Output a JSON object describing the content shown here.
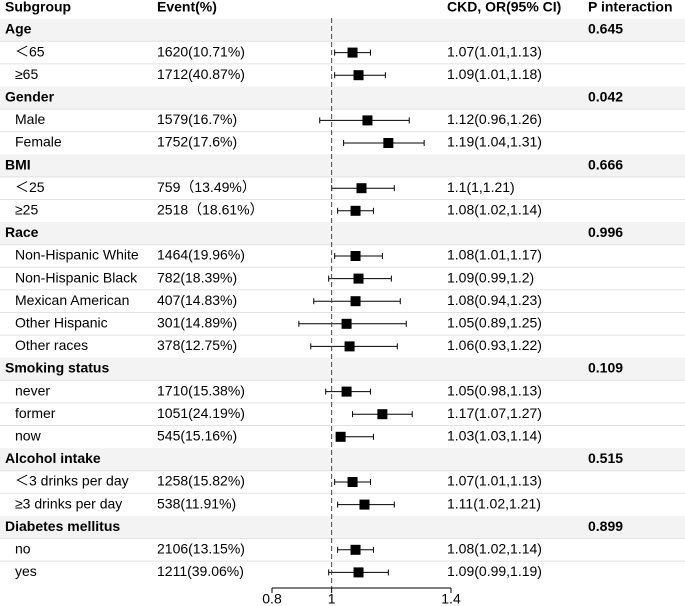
{
  "chart_data": {
    "type": "forest",
    "columns": [
      "Subgroup",
      "Event(%)",
      "CKD, OR(95% CI)",
      "P interaction"
    ],
    "xlim": [
      0.8,
      1.4
    ],
    "xticks": [
      0.8,
      1,
      1.4
    ],
    "reference": 1,
    "groups": [
      {
        "name": "Age",
        "p_interaction": 0.645,
        "rows": [
          {
            "label": "＜65",
            "event": "1620(10.71%)",
            "ci_label": "1.07(1.01,1.13)",
            "or": 1.07,
            "lower": 1.01,
            "upper": 1.13
          },
          {
            "label": "≥65",
            "event": "1712(40.87%)",
            "ci_label": "1.09(1.01,1.18)",
            "or": 1.09,
            "lower": 1.01,
            "upper": 1.18
          }
        ]
      },
      {
        "name": "Gender",
        "p_interaction": 0.042,
        "rows": [
          {
            "label": "Male",
            "event": "1579(16.7%)",
            "ci_label": "1.12(0.96,1.26)",
            "or": 1.12,
            "lower": 0.96,
            "upper": 1.26
          },
          {
            "label": "Female",
            "event": "1752(17.6%)",
            "ci_label": "1.19(1.04,1.31)",
            "or": 1.19,
            "lower": 1.04,
            "upper": 1.31
          }
        ]
      },
      {
        "name": "BMI",
        "p_interaction": 0.666,
        "rows": [
          {
            "label": "＜25",
            "event": "759（13.49%）",
            "ci_label": "1.1(1,1.21)",
            "or": 1.1,
            "lower": 1,
            "upper": 1.21
          },
          {
            "label": "≥25",
            "event": "2518（18.61%）",
            "ci_label": "1.08(1.02,1.14)",
            "or": 1.08,
            "lower": 1.02,
            "upper": 1.14
          }
        ]
      },
      {
        "name": "Race",
        "p_interaction": 0.996,
        "rows": [
          {
            "label": "Non-Hispanic White",
            "event": "1464(19.96%)",
            "ci_label": "1.08(1.01,1.17)",
            "or": 1.08,
            "lower": 1.01,
            "upper": 1.17
          },
          {
            "label": "Non-Hispanic Black",
            "event": "782(18.39%)",
            "ci_label": "1.09(0.99,1.2)",
            "or": 1.09,
            "lower": 0.99,
            "upper": 1.2
          },
          {
            "label": "Mexican American",
            "event": "407(14.83%)",
            "ci_label": "1.08(0.94,1.23)",
            "or": 1.08,
            "lower": 0.94,
            "upper": 1.23
          },
          {
            "label": "Other Hispanic",
            "event": "301(14.89%)",
            "ci_label": "1.05(0.89,1.25)",
            "or": 1.05,
            "lower": 0.89,
            "upper": 1.25
          },
          {
            "label": "Other races",
            "event": "378(12.75%)",
            "ci_label": "1.06(0.93,1.22)",
            "or": 1.06,
            "lower": 0.93,
            "upper": 1.22
          }
        ]
      },
      {
        "name": "Smoking status",
        "p_interaction": 0.109,
        "rows": [
          {
            "label": "never",
            "event": "1710(15.38%)",
            "ci_label": "1.05(0.98,1.13)",
            "or": 1.05,
            "lower": 0.98,
            "upper": 1.13
          },
          {
            "label": "former",
            "event": "1051(24.19%)",
            "ci_label": "1.17(1.07,1.27)",
            "or": 1.17,
            "lower": 1.07,
            "upper": 1.27
          },
          {
            "label": "now",
            "event": "545(15.16%)",
            "ci_label": "1.03(1.03,1.14)",
            "or": 1.03,
            "lower": 1.03,
            "upper": 1.14
          }
        ]
      },
      {
        "name": "Alcohol intake",
        "p_interaction": 0.515,
        "rows": [
          {
            "label": "＜3 drinks per day",
            "event": "1258(15.82%)",
            "ci_label": "1.07(1.01,1.13)",
            "or": 1.07,
            "lower": 1.01,
            "upper": 1.13
          },
          {
            "label": "≥3 drinks per day",
            "event": "538(11.91%)",
            "ci_label": "1.11(1.02,1.21)",
            "or": 1.11,
            "lower": 1.02,
            "upper": 1.21
          }
        ]
      },
      {
        "name": "Diabetes mellitus",
        "p_interaction": 0.899,
        "rows": [
          {
            "label": "no",
            "event": "2106(13.15%)",
            "ci_label": "1.08(1.02,1.14)",
            "or": 1.08,
            "lower": 1.02,
            "upper": 1.14
          },
          {
            "label": "yes",
            "event": "1211(39.06%)",
            "ci_label": "1.09(0.99,1.19)",
            "or": 1.09,
            "lower": 0.99,
            "upper": 1.19
          }
        ]
      }
    ]
  }
}
